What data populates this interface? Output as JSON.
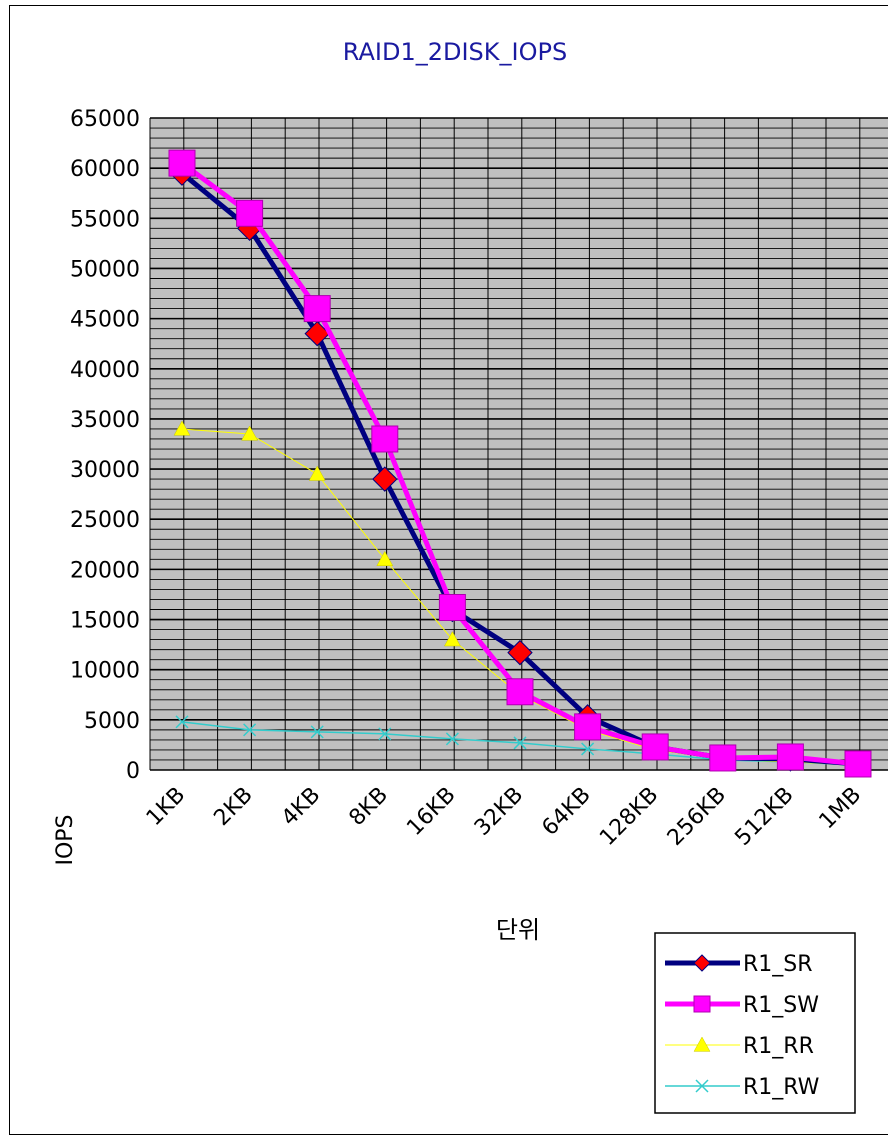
{
  "chart_data": {
    "type": "line",
    "title": "RAID1_2DISK_IOPS",
    "xlabel": "단위",
    "ylabel": "IOPS",
    "categories": [
      "1KB",
      "2KB",
      "4KB",
      "8KB",
      "16KB",
      "32KB",
      "64KB",
      "128KB",
      "256KB",
      "512KB",
      "1MB"
    ],
    "ylim": [
      0,
      65000
    ],
    "yticks": [
      "0",
      "5000",
      "10000",
      "15000",
      "20000",
      "25000",
      "30000",
      "35000",
      "40000",
      "45000",
      "50000",
      "55000",
      "60000",
      "65000"
    ],
    "grid": true,
    "legend_position": "bottom-right",
    "plot_background": "#c0c0c0",
    "series": [
      {
        "name": "R1_SR",
        "color": "#000080",
        "marker": "diamond",
        "marker_color": "#ff0000",
        "values": [
          59500,
          54000,
          43500,
          29000,
          16000,
          11700,
          5300,
          2300,
          1200,
          1100,
          600
        ]
      },
      {
        "name": "R1_SW",
        "color": "#ff00ff",
        "marker": "square",
        "marker_color": "#ff00ff",
        "values": [
          60500,
          55500,
          46000,
          33000,
          16200,
          7800,
          4300,
          2300,
          1200,
          1300,
          600
        ]
      },
      {
        "name": "R1_RR",
        "color": "#ffff00",
        "marker": "triangle",
        "marker_color": "#ffff00",
        "values": [
          34000,
          33500,
          29500,
          21000,
          13000,
          7500,
          4000,
          2000,
          1100,
          800,
          500
        ]
      },
      {
        "name": "R1_RW",
        "color": "#33cccc",
        "marker": "x",
        "marker_color": "#33cccc",
        "values": [
          4800,
          4000,
          3800,
          3600,
          3100,
          2700,
          2100,
          1600,
          1000,
          800,
          500
        ]
      }
    ]
  }
}
